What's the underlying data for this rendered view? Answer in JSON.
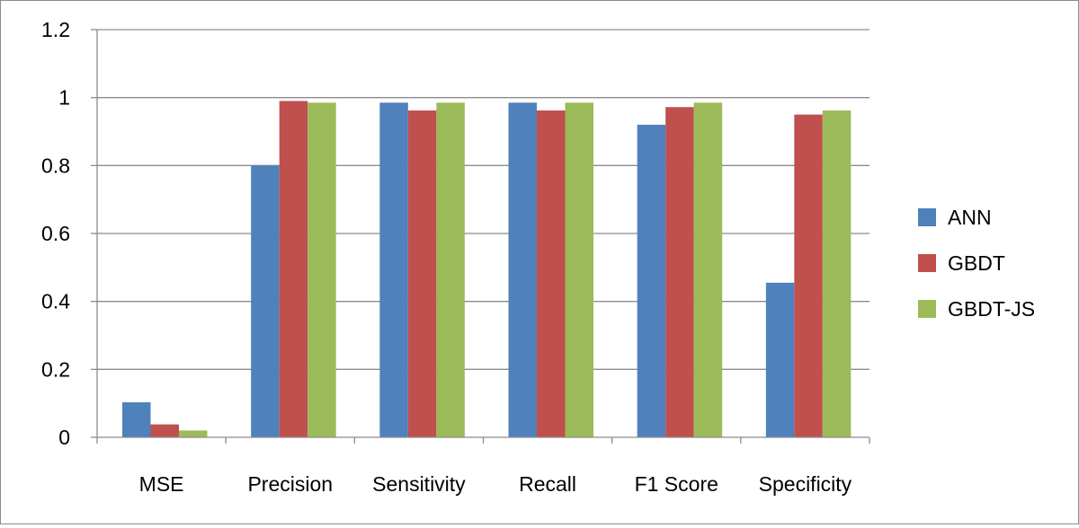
{
  "chart_data": {
    "type": "bar",
    "title": "",
    "xlabel": "",
    "ylabel": "",
    "categories": [
      "MSE",
      "Precision",
      "Sensitivity",
      "Recall",
      "F1 Score",
      "Specificity"
    ],
    "series": [
      {
        "name": "ANN",
        "color": "#4F81BD",
        "values": [
          0.103,
          0.8,
          0.985,
          0.985,
          0.92,
          0.455
        ]
      },
      {
        "name": "GBDT",
        "color": "#C0504D",
        "values": [
          0.038,
          0.99,
          0.962,
          0.962,
          0.972,
          0.95
        ]
      },
      {
        "name": "GBDT-JS",
        "color": "#9BBB59",
        "values": [
          0.02,
          0.985,
          0.985,
          0.985,
          0.985,
          0.962
        ]
      }
    ],
    "ylim": [
      0,
      1.2
    ],
    "yticks": [
      "0",
      "0.2",
      "0.4",
      "0.6",
      "0.8",
      "1",
      "1.2"
    ],
    "grid": true,
    "legend_position": "right"
  }
}
